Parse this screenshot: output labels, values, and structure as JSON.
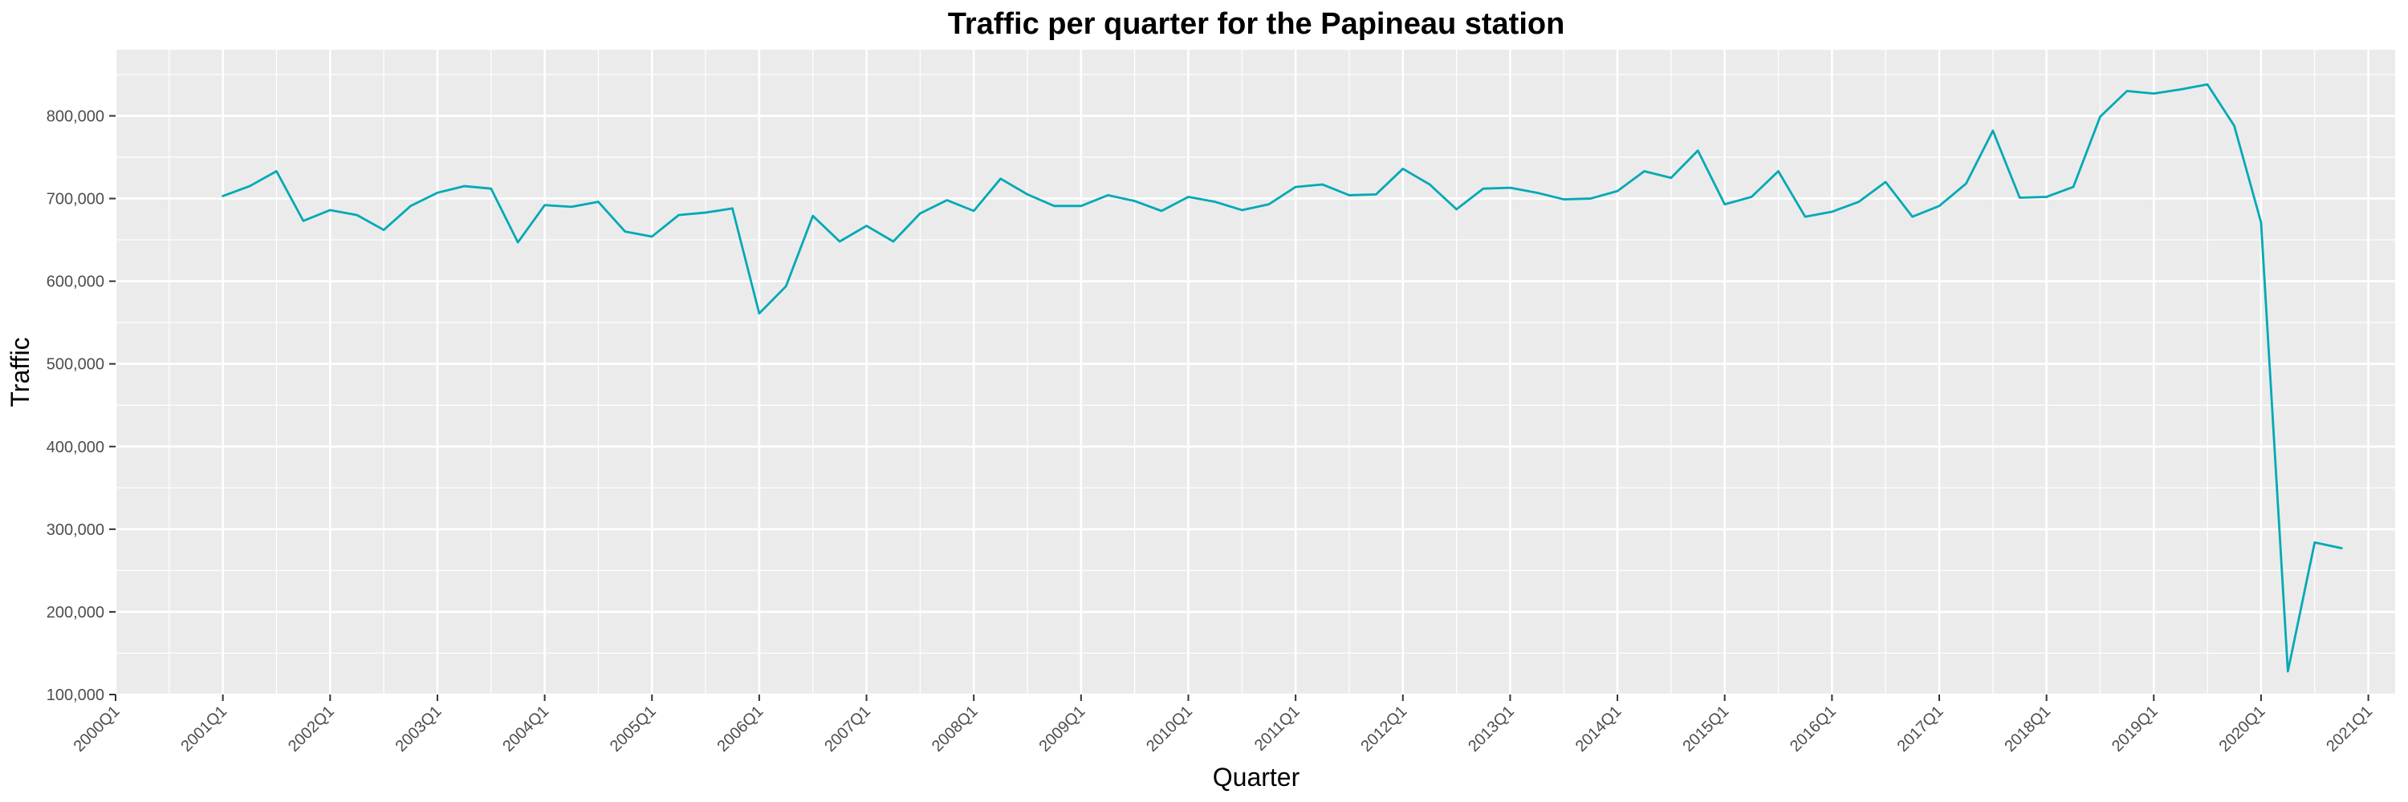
{
  "chart_data": {
    "type": "line",
    "title": "Traffic per quarter for the Papineau station",
    "xlabel": "Quarter",
    "ylabel": "Traffic",
    "x_ticks": [
      "2000Q1",
      "2001Q1",
      "2002Q1",
      "2003Q1",
      "2004Q1",
      "2005Q1",
      "2006Q1",
      "2007Q1",
      "2008Q1",
      "2009Q1",
      "2010Q1",
      "2011Q1",
      "2012Q1",
      "2013Q1",
      "2014Q1",
      "2015Q1",
      "2016Q1",
      "2017Q1",
      "2018Q1",
      "2019Q1",
      "2020Q1",
      "2021Q1"
    ],
    "y_ticks": [
      100000,
      200000,
      300000,
      400000,
      500000,
      600000,
      700000,
      800000
    ],
    "y_tick_labels": [
      "100,000",
      "200,000",
      "300,000",
      "400,000",
      "500,000",
      "600,000",
      "700,000",
      "800,000"
    ],
    "ylim": [
      100000,
      880000
    ],
    "xlim": [
      "2000Q1",
      "2021Q2"
    ],
    "grid": true,
    "line_color": "#00A9B5",
    "background_color": "#EBEBEB",
    "series": [
      {
        "x": [
          "2001Q1",
          "2001Q2",
          "2001Q3",
          "2001Q4",
          "2002Q1",
          "2002Q2",
          "2002Q3",
          "2002Q4",
          "2003Q1",
          "2003Q2",
          "2003Q3",
          "2003Q4",
          "2004Q1",
          "2004Q2",
          "2004Q3",
          "2004Q4",
          "2005Q1",
          "2005Q2",
          "2005Q3",
          "2005Q4",
          "2006Q1",
          "2006Q2",
          "2006Q3",
          "2006Q4",
          "2007Q1",
          "2007Q2",
          "2007Q3",
          "2007Q4",
          "2008Q1",
          "2008Q2",
          "2008Q3",
          "2008Q4",
          "2009Q1",
          "2009Q2",
          "2009Q3",
          "2009Q4",
          "2010Q1",
          "2010Q2",
          "2010Q3",
          "2010Q4",
          "2011Q1",
          "2011Q2",
          "2011Q3",
          "2011Q4",
          "2012Q1",
          "2012Q2",
          "2012Q3",
          "2012Q4",
          "2013Q1",
          "2013Q2",
          "2013Q3",
          "2013Q4",
          "2014Q1",
          "2014Q2",
          "2014Q3",
          "2014Q4",
          "2015Q1",
          "2015Q2",
          "2015Q3",
          "2015Q4",
          "2016Q1",
          "2016Q2",
          "2016Q3",
          "2016Q4",
          "2017Q1",
          "2017Q2",
          "2017Q3",
          "2017Q4",
          "2018Q1",
          "2018Q2",
          "2018Q3",
          "2018Q4",
          "2019Q1",
          "2019Q2",
          "2019Q3",
          "2019Q4",
          "2020Q1",
          "2020Q2",
          "2020Q3",
          "2020Q4"
        ],
        "values": [
          703000,
          715000,
          733000,
          673000,
          686000,
          680000,
          662000,
          691000,
          707000,
          715000,
          712000,
          647000,
          692000,
          690000,
          696000,
          660000,
          654000,
          680000,
          683000,
          688000,
          561000,
          594000,
          679000,
          648000,
          667000,
          648000,
          682000,
          698000,
          685000,
          724000,
          705000,
          691000,
          691000,
          704000,
          697000,
          685000,
          702000,
          696000,
          686000,
          693000,
          714000,
          717000,
          704000,
          705000,
          736000,
          717000,
          687000,
          712000,
          713000,
          707000,
          699000,
          700000,
          709000,
          733000,
          725000,
          758000,
          693000,
          702000,
          733000,
          678000,
          684000,
          696000,
          720000,
          678000,
          691000,
          718000,
          782000,
          701000,
          702000,
          714000,
          799000,
          830000,
          827000,
          832000,
          838000,
          788000,
          671000,
          128000,
          284000,
          277000
        ]
      }
    ]
  }
}
